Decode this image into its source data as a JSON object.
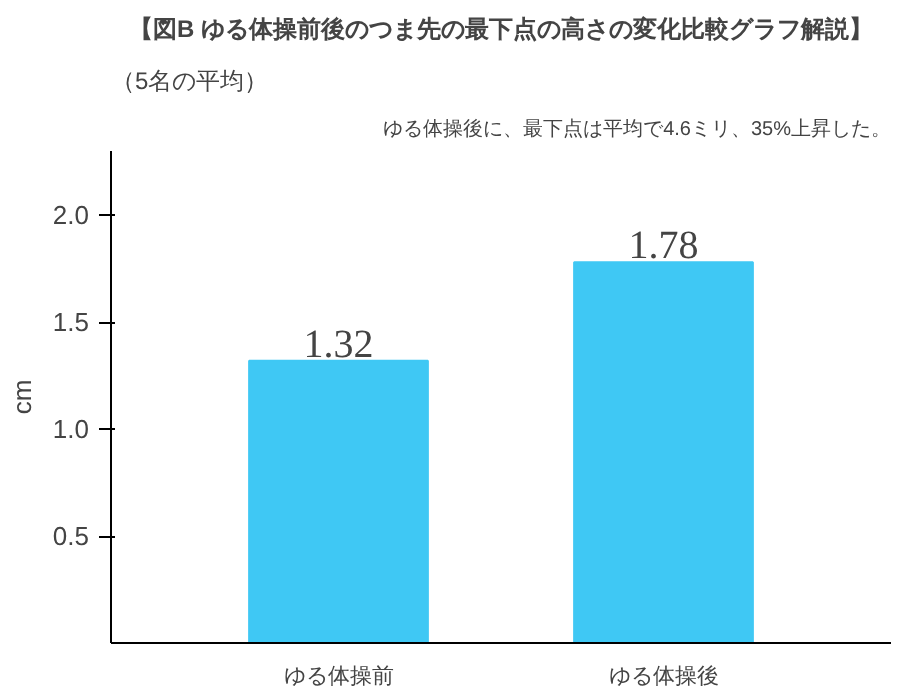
{
  "chart_data": {
    "type": "bar",
    "title": "【図B ゆる体操前後のつま先の最下点の高さの変化比較グラフ解説】",
    "subtitle": "（5名の平均）",
    "annotations": [
      "ゆる体操後に、最下点は平均で4.6ミリ、35%上昇した。"
    ],
    "ylabel": "cm",
    "categories": [
      "ゆる体操前",
      "ゆる体操後"
    ],
    "values": [
      1.32,
      1.78
    ],
    "color": "#3fc8f4",
    "ylim": [
      0,
      2.3
    ],
    "yticks": [
      {
        "value": 0.5,
        "label": "0.5"
      },
      {
        "value": 1,
        "label": "1.0"
      },
      {
        "value": 1.5,
        "label": "1.5"
      },
      {
        "value": 2,
        "label": "2.0"
      }
    ],
    "data_labels": true,
    "grid": false
  }
}
